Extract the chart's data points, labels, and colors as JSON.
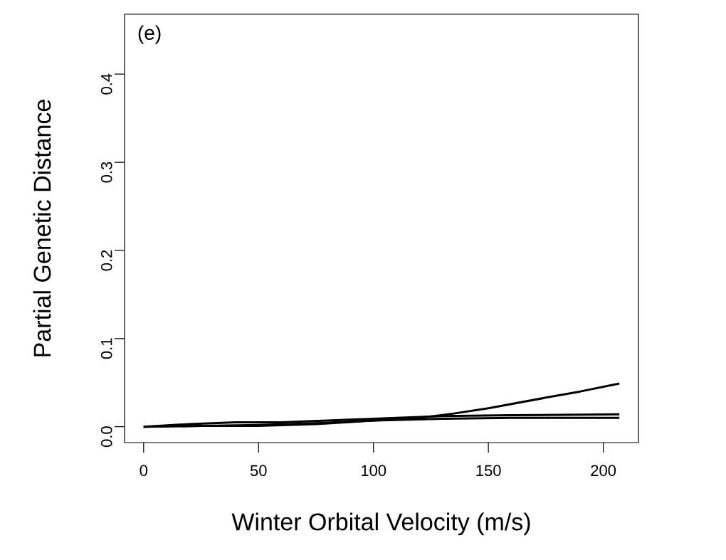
{
  "chart_data": {
    "type": "line",
    "xlabel": "Winter Orbital Velocity (m/s)",
    "ylabel": "Partial Genetic Distance",
    "annotations": [
      "(e)"
    ],
    "xlim": [
      -8.3,
      215.3
    ],
    "ylim": [
      -0.018,
      0.468
    ],
    "xticks": [
      0,
      50,
      100,
      150,
      200
    ],
    "yticks": [
      {
        "value": 0,
        "label": "0.0"
      },
      {
        "value": 0.1,
        "label": "0.1"
      },
      {
        "value": 0.2,
        "label": "0.2"
      },
      {
        "value": 0.3,
        "label": "0.3"
      },
      {
        "value": 0.4,
        "label": "0.4"
      }
    ],
    "grid": false,
    "legend": false,
    "marker": "none",
    "line_style": "solid",
    "series": [
      {
        "color": "#000000",
        "x": [
          0,
          25,
          50,
          75,
          100,
          120,
          135,
          150,
          175,
          190,
          207
        ],
        "values": [
          0,
          0.001,
          0.002,
          0.004,
          0.007,
          0.01,
          0.015,
          0.021,
          0.033,
          0.04,
          0.049
        ]
      },
      {
        "color": "#000000",
        "x": [
          0,
          20,
          40,
          60,
          80,
          100,
          130,
          160,
          207
        ],
        "values": [
          0,
          0.003,
          0.005,
          0.005,
          0.007,
          0.009,
          0.012,
          0.013,
          0.014
        ]
      },
      {
        "color": "#000000",
        "x": [
          0,
          25,
          50,
          75,
          100,
          130,
          160,
          207
        ],
        "values": [
          0,
          0.001,
          0.001,
          0.003,
          0.007,
          0.009,
          0.01,
          0.01
        ]
      }
    ]
  }
}
